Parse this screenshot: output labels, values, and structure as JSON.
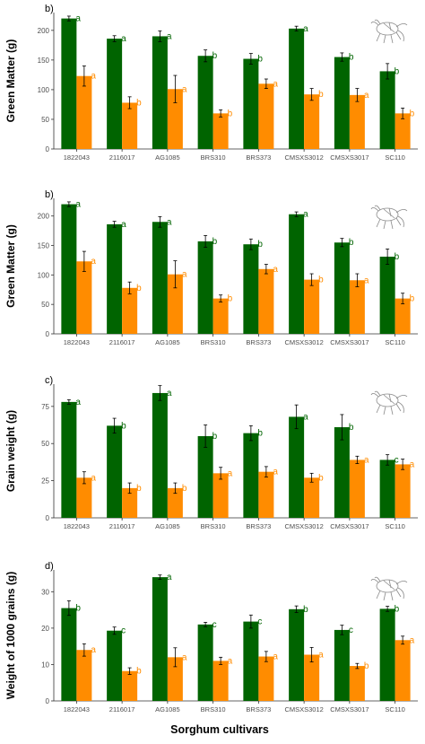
{
  "colors": {
    "series1": "#006400",
    "series2": "#ff8c00",
    "axis": "#333333"
  },
  "icon": "plant-insect-icon",
  "xlabel": "Sorghum cultivars",
  "categories": [
    "1822043",
    "2116017",
    "AG1085",
    "BRS310",
    "BRS373",
    "CMSXS3012",
    "CMSXS3017",
    "SC110"
  ],
  "chart_data": [
    {
      "type": "bar",
      "panel": "b)",
      "ylabel": "Green Matter (g)",
      "ylim": [
        0,
        230
      ],
      "yticks": [
        0,
        50,
        100,
        150,
        200
      ],
      "categories": [
        "1822043",
        "2116017",
        "AG1085",
        "BRS310",
        "BRS373",
        "CMSXS3012",
        "CMSXS3017",
        "SC110"
      ],
      "series": [
        {
          "values": [
            220,
            186,
            190,
            157,
            152,
            203,
            155,
            131
          ],
          "errors": [
            4,
            5,
            9,
            10,
            9,
            4,
            7,
            13
          ],
          "letters": [
            "a",
            "a",
            "a",
            "b",
            "b",
            "a",
            "b",
            "b"
          ]
        },
        {
          "values": [
            123,
            78,
            101,
            60,
            110,
            92,
            91,
            60
          ],
          "errors": [
            17,
            10,
            23,
            6,
            8,
            10,
            11,
            9
          ],
          "letters": [
            "a",
            "b",
            "a",
            "b",
            "a",
            "b",
            "a",
            "b"
          ]
        }
      ]
    },
    {
      "type": "bar",
      "panel": "b)",
      "ylabel": "Green Matter (g)",
      "ylim": [
        0,
        230
      ],
      "yticks": [
        0,
        50,
        100,
        150,
        200
      ],
      "categories": [
        "1822043",
        "2116017",
        "AG1085",
        "BRS310",
        "BRS373",
        "CMSXS3012",
        "CMSXS3017",
        "SC110"
      ],
      "series": [
        {
          "values": [
            220,
            186,
            190,
            157,
            152,
            203,
            155,
            131
          ],
          "errors": [
            4,
            5,
            9,
            10,
            9,
            4,
            7,
            13
          ],
          "letters": [
            "a",
            "a",
            "a",
            "b",
            "b",
            "a",
            "b",
            "b"
          ]
        },
        {
          "values": [
            123,
            78,
            101,
            60,
            110,
            92,
            91,
            60
          ],
          "errors": [
            17,
            10,
            23,
            6,
            8,
            10,
            11,
            9
          ],
          "letters": [
            "a",
            "b",
            "a",
            "b",
            "a",
            "b",
            "a",
            "b"
          ]
        }
      ]
    },
    {
      "type": "bar",
      "panel": "c)",
      "ylabel": "Grain weight (g)",
      "ylim": [
        0,
        90
      ],
      "yticks": [
        0,
        25,
        50,
        75
      ],
      "categories": [
        "1822043",
        "2116017",
        "AG1085",
        "BRS310",
        "BRS373",
        "CMSXS3012",
        "CMSXS3017",
        "SC110"
      ],
      "series": [
        {
          "values": [
            78,
            62,
            84,
            55,
            57,
            68,
            61,
            39
          ],
          "errors": [
            1.5,
            5,
            5,
            7.5,
            5,
            8,
            8.5,
            3.5
          ],
          "letters": [
            "a",
            "b",
            "a",
            "b",
            "b",
            "a",
            "b",
            "c"
          ]
        },
        {
          "values": [
            27,
            20,
            20,
            30,
            31,
            27,
            39,
            36
          ],
          "errors": [
            4,
            3.5,
            3.5,
            4,
            3.5,
            3,
            2.5,
            3.5
          ],
          "letters": [
            "a",
            "b",
            "b",
            "a",
            "a",
            "b",
            "a",
            "a"
          ]
        }
      ]
    },
    {
      "type": "bar",
      "panel": "d)",
      "ylabel": "Weight of 1000 grains (g)",
      "ylim": [
        0,
        36
      ],
      "yticks": [
        0,
        10,
        20,
        30
      ],
      "categories": [
        "1822043",
        "2116017",
        "AG1085",
        "BRS310",
        "BRS373",
        "CMSXS3012",
        "CMSXS3017",
        "SC110"
      ],
      "series": [
        {
          "values": [
            25.5,
            19.3,
            34,
            21,
            21.8,
            25.2,
            19.5,
            25.3
          ],
          "errors": [
            2,
            1,
            0.6,
            0.6,
            1.8,
            0.9,
            1.3,
            0.7
          ],
          "letters": [
            "b",
            "c",
            "a",
            "c",
            "c",
            "b",
            "c",
            "b"
          ]
        },
        {
          "values": [
            14,
            8.2,
            12,
            11,
            12.2,
            12.7,
            9.6,
            16.7
          ],
          "errors": [
            1.7,
            0.9,
            2.6,
            1,
            1.4,
            2,
            0.7,
            1.1
          ],
          "letters": [
            "a",
            "b",
            "a",
            "a",
            "a",
            "a",
            "b",
            "a"
          ]
        }
      ]
    }
  ]
}
